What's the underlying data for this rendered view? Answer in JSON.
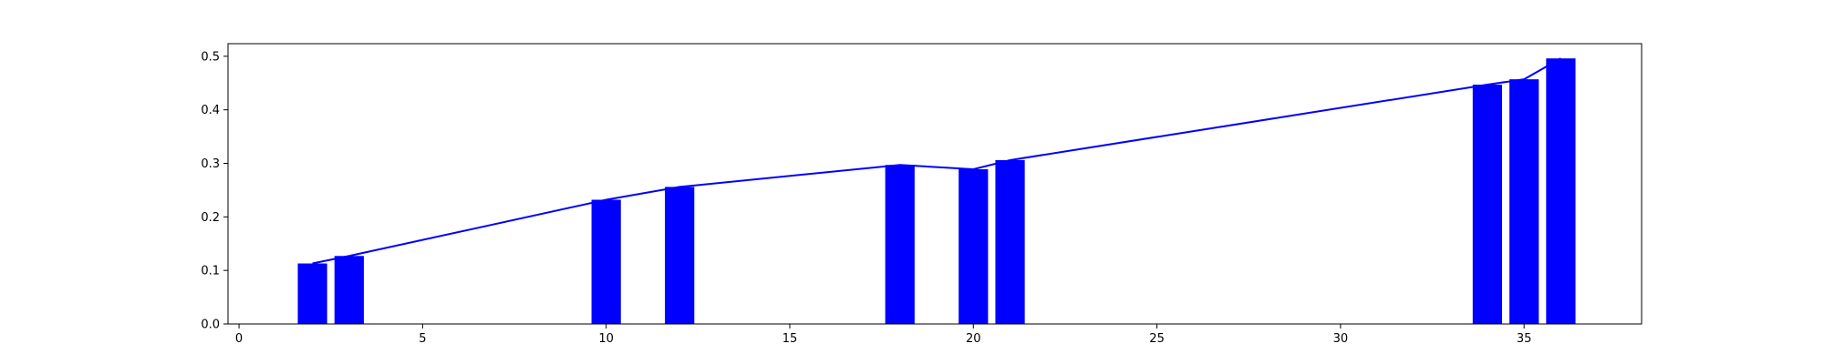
{
  "chart_data": {
    "type": "bar",
    "title": "",
    "xlabel": "",
    "ylabel": "",
    "xlim": [
      -0.3,
      38.2
    ],
    "ylim": [
      0,
      0.5235
    ],
    "x_ticks": [
      0,
      5,
      10,
      15,
      20,
      25,
      30,
      35
    ],
    "y_ticks": [
      0.0,
      0.1,
      0.2,
      0.3,
      0.4,
      0.5
    ],
    "x_tick_labels": [
      "0",
      "5",
      "10",
      "15",
      "20",
      "25",
      "30",
      "35"
    ],
    "y_tick_labels": [
      "0.0",
      "0.1",
      "0.2",
      "0.3",
      "0.4",
      "0.5"
    ],
    "bar_width": 0.8,
    "grid": false,
    "legend": "none",
    "colors": {
      "bar": "#0000ff",
      "line": "#0000ff",
      "axes": "#000000",
      "background": "#ffffff"
    },
    "bars": {
      "x": [
        2,
        3,
        10,
        12,
        18,
        20,
        21,
        34,
        35,
        36
      ],
      "values": [
        0.113,
        0.127,
        0.232,
        0.256,
        0.297,
        0.289,
        0.306,
        0.447,
        0.457,
        0.496
      ]
    },
    "line": {
      "x": [
        2,
        3,
        10,
        12,
        18,
        20,
        21,
        34,
        35,
        36
      ],
      "values": [
        0.113,
        0.127,
        0.232,
        0.256,
        0.297,
        0.289,
        0.306,
        0.447,
        0.457,
        0.496
      ]
    }
  }
}
